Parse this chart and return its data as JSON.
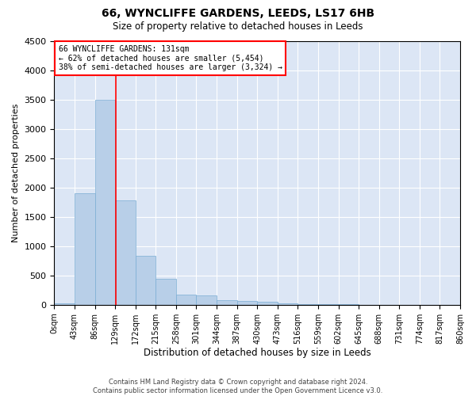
{
  "title": "66, WYNCLIFFE GARDENS, LEEDS, LS17 6HB",
  "subtitle": "Size of property relative to detached houses in Leeds",
  "xlabel": "Distribution of detached houses by size in Leeds",
  "ylabel": "Number of detached properties",
  "bar_color": "#b8cfe8",
  "bar_edge_color": "#7aadd4",
  "background_color": "#dce6f5",
  "grid_color": "white",
  "vline_x": 131,
  "vline_color": "red",
  "annotation_text": "66 WYNCLIFFE GARDENS: 131sqm\n← 62% of detached houses are smaller (5,454)\n38% of semi-detached houses are larger (3,324) →",
  "annotation_box_color": "white",
  "annotation_box_edge": "red",
  "bin_edges": [
    0,
    43,
    86,
    129,
    172,
    215,
    258,
    301,
    344,
    387,
    430,
    473,
    516,
    559,
    602,
    645,
    688,
    731,
    774,
    817,
    860
  ],
  "bin_labels": [
    "0sqm",
    "43sqm",
    "86sqm",
    "129sqm",
    "172sqm",
    "215sqm",
    "258sqm",
    "301sqm",
    "344sqm",
    "387sqm",
    "430sqm",
    "473sqm",
    "516sqm",
    "559sqm",
    "602sqm",
    "645sqm",
    "688sqm",
    "731sqm",
    "774sqm",
    "817sqm",
    "860sqm"
  ],
  "bar_heights": [
    30,
    1900,
    3500,
    1780,
    840,
    450,
    170,
    160,
    80,
    60,
    50,
    30,
    5,
    5,
    5,
    3,
    2,
    2,
    2,
    2
  ],
  "ylim": [
    0,
    4500
  ],
  "yticks": [
    0,
    500,
    1000,
    1500,
    2000,
    2500,
    3000,
    3500,
    4000,
    4500
  ],
  "footer_line1": "Contains HM Land Registry data © Crown copyright and database right 2024.",
  "footer_line2": "Contains public sector information licensed under the Open Government Licence v3.0.",
  "title_fontsize": 10,
  "subtitle_fontsize": 8.5,
  "ylabel_fontsize": 8,
  "xlabel_fontsize": 8.5,
  "tick_fontsize": 7,
  "footer_fontsize": 6,
  "ann_fontsize": 7
}
